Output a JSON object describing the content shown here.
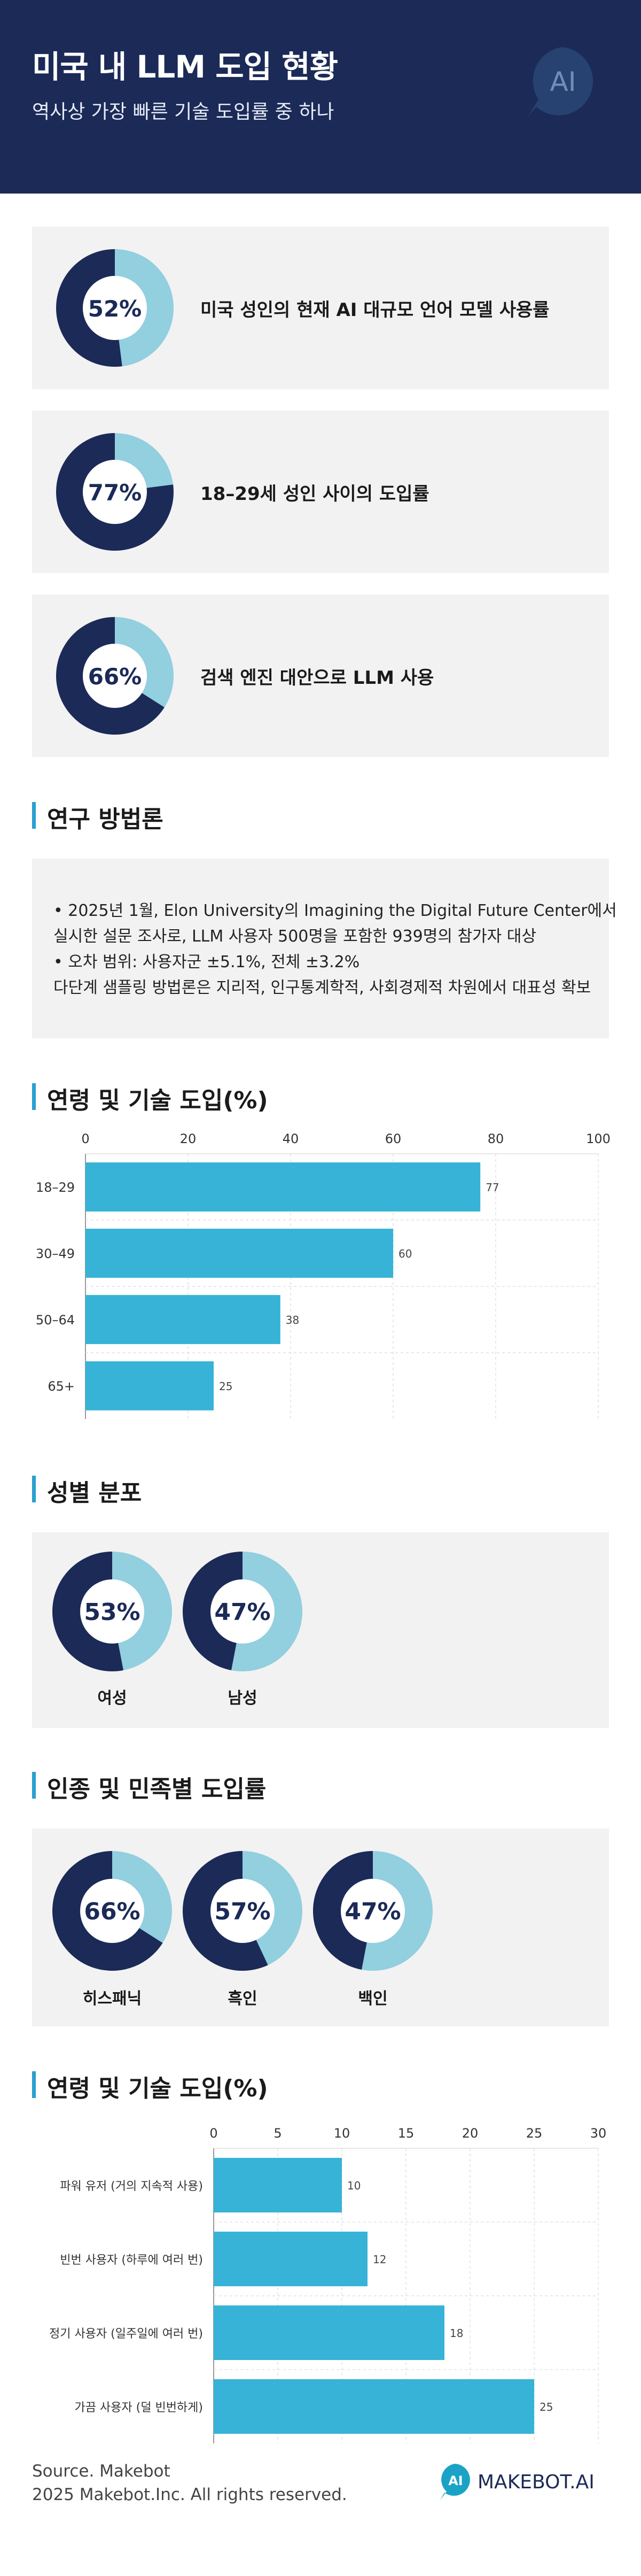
{
  "header": {
    "title": "미국 내 LLM 도입 현황",
    "subtitle": "역사상 가장 빠른 기술 도입률 중 하나",
    "logo_text": "AI"
  },
  "stats": [
    {
      "pct_text": "52%",
      "value": 52,
      "text": "미국 성인의 현재 AI 대규모 언어 모델 사용률"
    },
    {
      "pct_text": "77%",
      "value": 77,
      "text": "18–29세 성인 사이의 도입률"
    },
    {
      "pct_text": "66%",
      "value": 66,
      "text": "검색 엔진 대안으로 LLM 사용"
    }
  ],
  "methodology": {
    "title": "연구 방법론",
    "lines": [
      "• 2025년 1월, Elon University의 Imagining the Digital Future Center에서",
      "실시한 설문 조사로, LLM 사용자 500명을 포함한 939명의 참가자 대상",
      "• 오차 범위: 사용자군 ±5.1%, 전체 ±3.2%",
      "다단계 샘플링 방법론은 지리적, 인구통계학적, 사회경제적 차원에서 대표성 확보"
    ]
  },
  "gender": {
    "title": "성별 분포",
    "items": [
      {
        "pct_text": "53%",
        "value": 53,
        "label": "여성"
      },
      {
        "pct_text": "47%",
        "value": 47,
        "label": "남성"
      }
    ]
  },
  "ethnicity": {
    "title": "인종 및 민족별 도입률",
    "items": [
      {
        "pct_text": "66%",
        "value": 66,
        "label": "히스패닉"
      },
      {
        "pct_text": "57%",
        "value": 57,
        "label": "흑인"
      },
      {
        "pct_text": "47%",
        "value": 47,
        "label": "백인"
      }
    ]
  },
  "colors": {
    "navy": "#1b2a57",
    "light": "#92cfdf",
    "bar": "#36b3d6",
    "card": "#f2f2f2",
    "accent": "#2a9fd0"
  },
  "chart_data": [
    {
      "type": "bar",
      "orientation": "horizontal",
      "title": "연령 및 기술 도입(%)",
      "categories": [
        "18–29",
        "30–49",
        "50–64",
        "65+"
      ],
      "values": [
        77,
        60,
        38,
        25
      ],
      "xlim": [
        0,
        100
      ],
      "ticks": [
        0,
        20,
        40,
        60,
        80,
        100
      ],
      "grid": true
    },
    {
      "type": "bar",
      "orientation": "horizontal",
      "title": "연령 및 기술 도입(%)",
      "categories": [
        "파워 유저 (거의 지속적 사용)",
        "빈번 사용자 (하루에 여러 번)",
        "정기 사용자 (일주일에 여러 번)",
        "가끔 사용자 (덜 빈번하게)"
      ],
      "values": [
        10,
        12,
        18,
        25
      ],
      "xlim": [
        0,
        30
      ],
      "ticks": [
        0,
        5,
        10,
        15,
        20,
        25,
        30
      ],
      "grid": true
    }
  ],
  "footer": {
    "source": "Source. Makebot",
    "copyright": "2025 Makebot.Inc. All rights reserved.",
    "brand_badge": "AI",
    "brand_name": "MAKEBOT.AI"
  }
}
